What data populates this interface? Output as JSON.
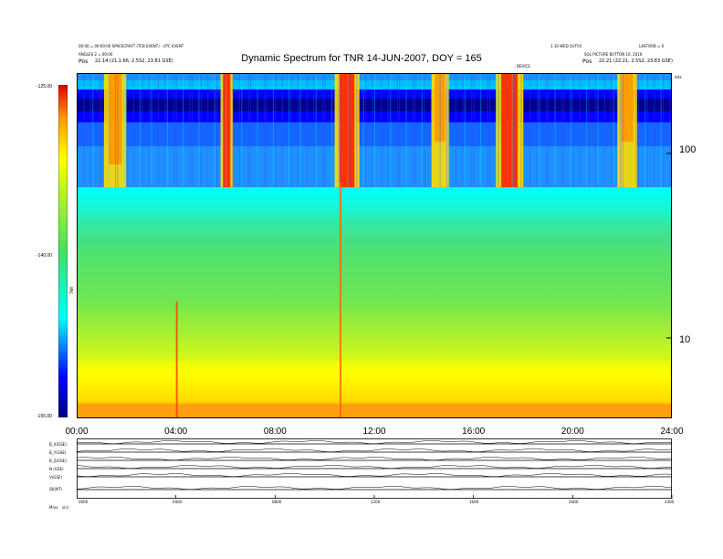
{
  "header": {
    "left_line1": "00:00 = 00:00:00 SPACECRAFT (TCB EVENT) - UTC EVENT",
    "left_line2": "ANGLES 2 = 00:00",
    "left_line3a": "Pos",
    "left_line3b": "22.14 (21.1.66, 2.5S2, 23.81 GSE)",
    "right_line1a": "1.10 WED 2UTC0",
    "right_line1b": "LASTORB = 0",
    "right_line2": "SOL PICTURE BUTTON 10, 2010",
    "right_line3a": "Pos",
    "right_line3b": "22.21 (22.21, 2.5S2, 23.83 GSE)",
    "center_mark": "DEVICE"
  },
  "chart_data": {
    "type": "heatmap",
    "title": "Dynamic Spectrum for TNR 14-JUN-2007, DOY = 165",
    "x_ticks": [
      "00:00",
      "04:00",
      "08:00",
      "12:00",
      "16:00",
      "20:00",
      "24:00"
    ],
    "x_range_hours": [
      0,
      24
    ],
    "y_right_ticks": [
      "100",
      "10"
    ],
    "y_right_unit": "kHz",
    "y_scale": "log",
    "colorbar_ticks": [
      "-125.00",
      "-140.00",
      "-155.00"
    ],
    "colorbar_range": [
      -155,
      -125
    ],
    "colorbar_label": "TNR",
    "colorscale": [
      "#000080",
      "#0000ff",
      "#1e90ff",
      "#00ffff",
      "#44e060",
      "#7ee84a",
      "#ffff00",
      "#ff9900",
      "#e00000"
    ],
    "bursts_hours": [
      {
        "start": 1.1,
        "end": 2.0,
        "intensity": 0.8
      },
      {
        "start": 5.8,
        "end": 6.3,
        "intensity": 1.0
      },
      {
        "start": 10.4,
        "end": 11.4,
        "intensity": 1.0
      },
      {
        "start": 14.3,
        "end": 15.0,
        "intensity": 0.6
      },
      {
        "start": 16.9,
        "end": 18.0,
        "intensity": 1.0
      },
      {
        "start": 21.8,
        "end": 22.6,
        "intensity": 0.6
      }
    ]
  },
  "panels": {
    "labels": [
      "B_X(GSE)",
      "B_Y(GSE)",
      "B_Z(GSE)",
      "N (GSE)",
      "V(GSE)",
      "|B|(NT)"
    ],
    "bottom_left": "Mins.",
    "bottom_left2": "s(c)",
    "x_ticks": [
      "0000",
      "0400",
      "0800",
      "1200",
      "1600",
      "2000",
      "2400"
    ]
  }
}
